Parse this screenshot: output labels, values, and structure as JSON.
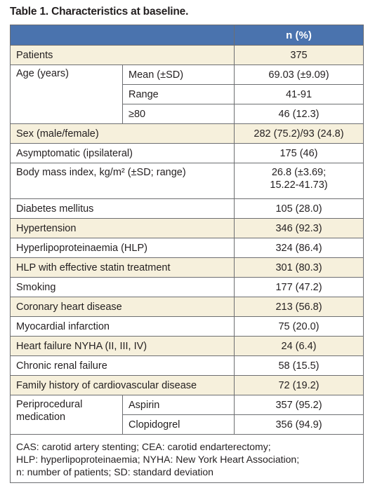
{
  "caption": "Table 1. Characteristics at baseline.",
  "header": {
    "value_col": "n (%)"
  },
  "rows": {
    "patients": {
      "label": "Patients",
      "value": "375"
    },
    "age": {
      "label": "Age (years)",
      "mean": {
        "sub": "Mean (±SD)",
        "value": "69.03 (±9.09)"
      },
      "range": {
        "sub": "Range",
        "value": "41-91"
      },
      "over80": {
        "sub": "≥80",
        "value": "46 (12.3)"
      }
    },
    "sex": {
      "label": "Sex (male/female)",
      "value": "282 (75.2)/93 (24.8)"
    },
    "asymptomatic": {
      "label": "Asymptomatic (ipsilateral)",
      "value": "175 (46)"
    },
    "bmi": {
      "label": "Body mass index, kg/m² (±SD; range)",
      "value_line1": "26.8 (±3.69;",
      "value_line2": "15.22-41.73)"
    },
    "diabetes": {
      "label": "Diabetes mellitus",
      "value": "105 (28.0)"
    },
    "hypertension": {
      "label": "Hypertension",
      "value": "346 (92.3)"
    },
    "hlp": {
      "label": "Hyperlipoproteinaemia (HLP)",
      "value": "324 (86.4)"
    },
    "hlp_statin": {
      "label": "HLP with effective statin treatment",
      "value": "301 (80.3)"
    },
    "smoking": {
      "label": "Smoking",
      "value": "177 (47.2)"
    },
    "chd": {
      "label": "Coronary heart disease",
      "value": "213 (56.8)"
    },
    "mi": {
      "label": "Myocardial infarction",
      "value": "75 (20.0)"
    },
    "hf": {
      "label": "Heart failure NYHA (II, III, IV)",
      "value": "24 (6.4)"
    },
    "crf": {
      "label": "Chronic renal failure",
      "value": "58 (15.5)"
    },
    "family": {
      "label": "Family history of cardiovascular disease",
      "value": "72 (19.2)"
    },
    "periproc": {
      "label_line1": "Periprocedural",
      "label_line2": "medication",
      "aspirin": {
        "sub": "Aspirin",
        "value": "357 (95.2)"
      },
      "clopidogrel": {
        "sub": "Clopidogrel",
        "value": "356 (94.9)"
      }
    }
  },
  "footnote": {
    "line1": "CAS: carotid artery stenting; CEA: carotid endarterectomy;",
    "line2": "HLP: hyperlipoproteinaemia; NYHA: New York Heart Association;",
    "line3": "n: number of patients; SD: standard deviation"
  },
  "colors": {
    "header_bg": "#4a73ae",
    "shade_bg": "#f6f0dc",
    "border": "#6d6e71"
  }
}
